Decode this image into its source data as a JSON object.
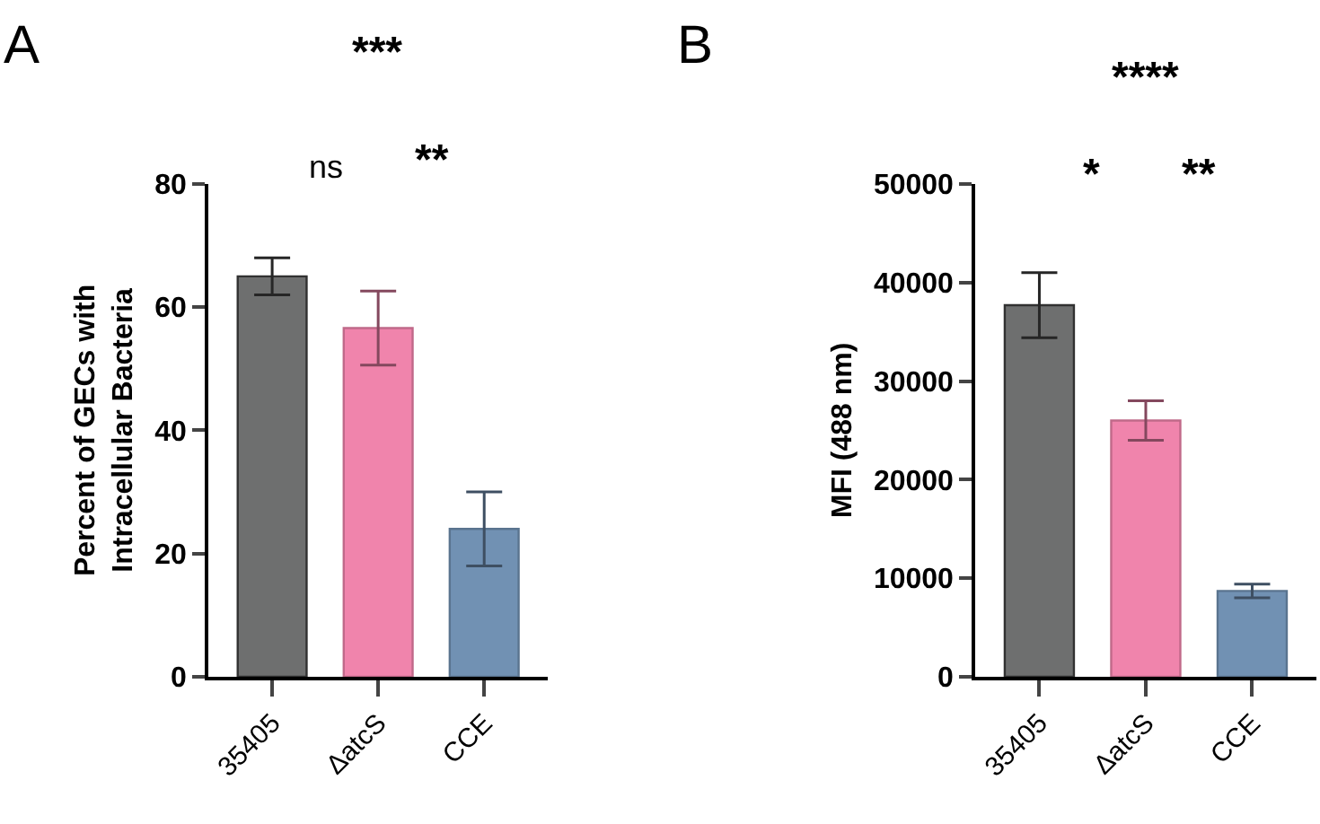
{
  "chart_data": [
    {
      "type": "bar",
      "title": "A",
      "ylabel": "Percent of GECs with\nIntracellular Bacteria",
      "categories": [
        "35405",
        "ΔatcS",
        "CCE"
      ],
      "values": [
        65,
        56.6,
        24
      ],
      "errors": [
        3,
        6,
        6
      ],
      "colors": [
        "#6e6f6f",
        "#f084ac",
        "#7191b3"
      ],
      "ylim": [
        0,
        80
      ],
      "yticks": [
        0,
        20,
        40,
        60,
        80
      ],
      "annotations": [
        "***",
        "ns",
        "**"
      ]
    },
    {
      "type": "bar",
      "title": "B",
      "ylabel": "MFI (488 nm)",
      "categories": [
        "35405",
        "ΔatcS",
        "CCE"
      ],
      "values": [
        37700,
        26000,
        8700
      ],
      "errors": [
        3300,
        2000,
        700
      ],
      "colors": [
        "#6e6f6f",
        "#f084ac",
        "#7191b3"
      ],
      "ylim": [
        0,
        50000
      ],
      "yticks": [
        0,
        10000,
        20000,
        30000,
        40000,
        50000
      ],
      "annotations": [
        "****",
        "*",
        "**"
      ]
    }
  ]
}
